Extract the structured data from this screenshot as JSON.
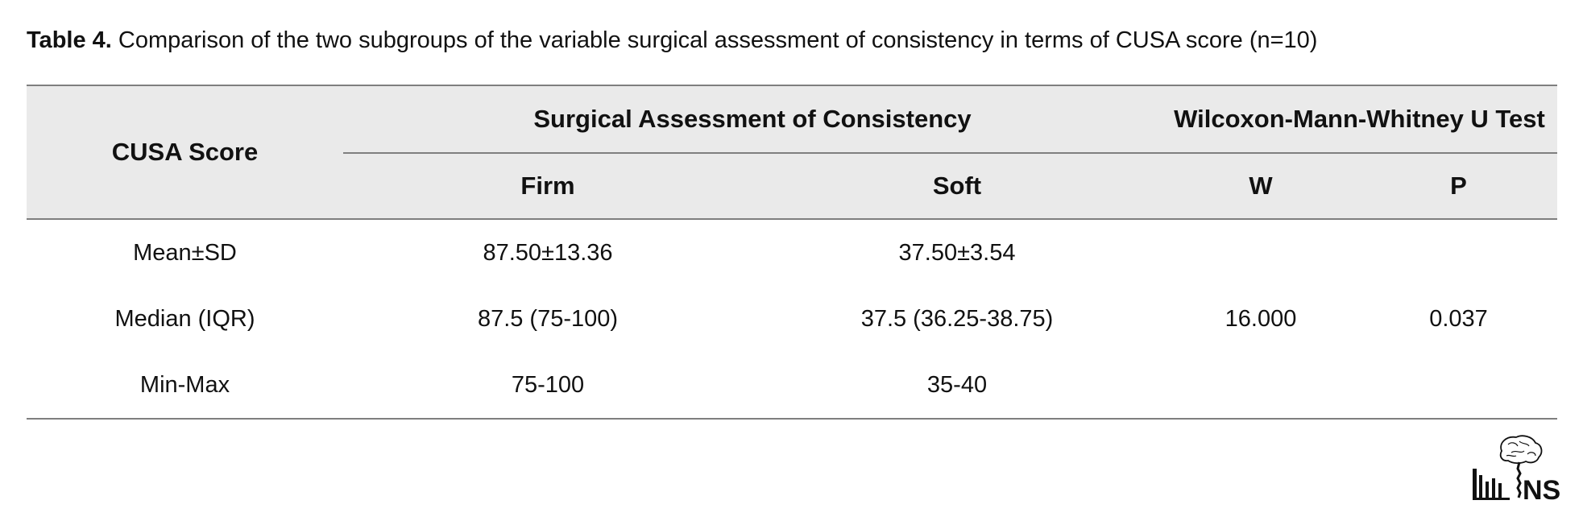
{
  "caption": {
    "label": "Table 4.",
    "text": " Comparison of the two subgroups of the variable surgical assessment of consistency in terms of CUSA score (n=10)"
  },
  "table": {
    "row_header": "CUSA Score",
    "group_headers": [
      "Surgical Assessment of Consistency",
      "Wilcoxon-Mann-Whitney U Test"
    ],
    "sub_headers": [
      "Firm",
      "Soft",
      "W",
      "P"
    ],
    "rows": [
      {
        "label": "Mean±SD",
        "firm": "87.50±13.36",
        "soft": "37.50±3.54",
        "w": "",
        "p": ""
      },
      {
        "label": "Median (IQR)",
        "firm": "87.5 (75-100)",
        "soft": "37.5 (36.25-38.75)",
        "w": "16.000",
        "p": "0.037"
      },
      {
        "label": "Min-Max",
        "firm": "75-100",
        "soft": "35-40",
        "w": "",
        "p": ""
      }
    ]
  },
  "logo": {
    "text": "NS",
    "icon": "journal-logo-brain-spine"
  }
}
